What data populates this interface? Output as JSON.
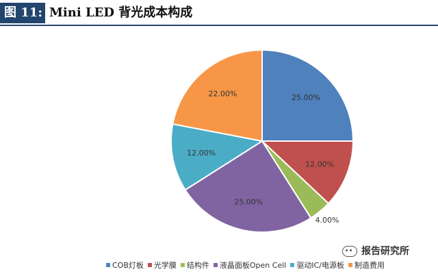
{
  "header": {
    "fig_label": "图 11:",
    "title": "Mini LED 背光成本构成"
  },
  "watermark": "报告研究所",
  "chart_data": {
    "type": "pie",
    "slices": [
      {
        "label": "COB灯板",
        "value": 25.0,
        "display": "25.00%",
        "color": "#4f81bd"
      },
      {
        "label": "光学膜",
        "value": 12.0,
        "display": "12.00%",
        "color": "#c0504d"
      },
      {
        "label": "结构件",
        "value": 4.0,
        "display": "4.00%",
        "color": "#9bbb59"
      },
      {
        "label": "液晶面板Open Cell",
        "value": 25.0,
        "display": "25.00%",
        "color": "#8064a2"
      },
      {
        "label": "驱动IC/电源板",
        "value": 12.0,
        "display": "12.00%",
        "color": "#4bacc6"
      },
      {
        "label": "制造费用",
        "value": 22.0,
        "display": "22.00%",
        "color": "#f79646"
      }
    ],
    "legend_position": "bottom",
    "start_angle_deg": 0,
    "direction": "clockwise"
  }
}
